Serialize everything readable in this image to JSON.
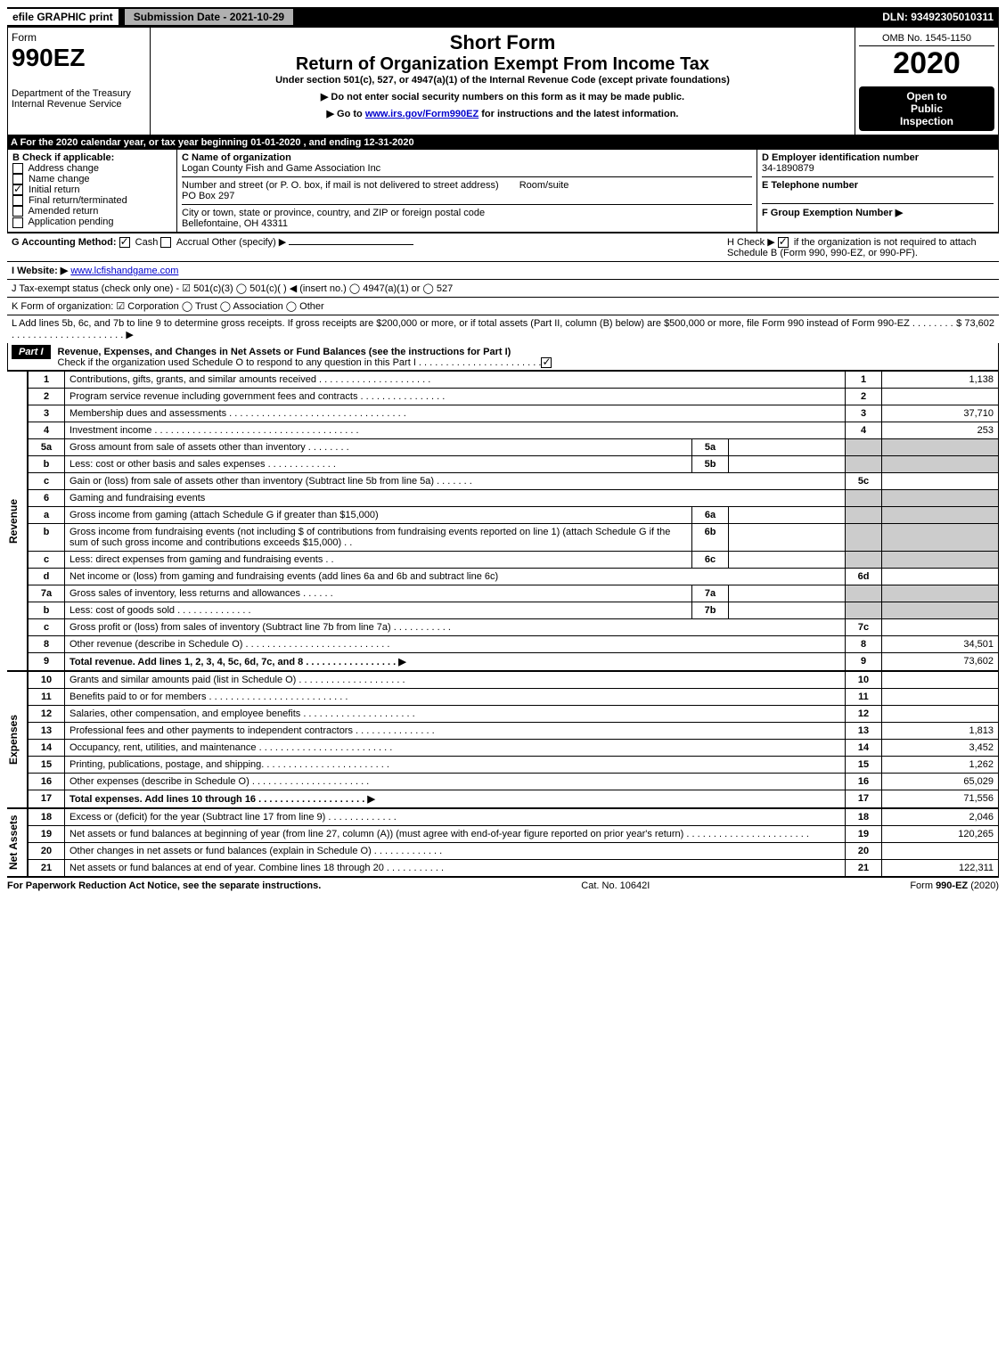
{
  "topbar": {
    "efile": "efile GRAPHIC print",
    "submission_label": "Submission Date - 2021-10-29",
    "dln": "DLN: 93492305010311"
  },
  "header": {
    "form_word": "Form",
    "form_num": "990EZ",
    "dept": "Department of the Treasury",
    "irs": "Internal Revenue Service",
    "short": "Short Form",
    "title": "Return of Organization Exempt From Income Tax",
    "subtitle": "Under section 501(c), 527, or 4947(a)(1) of the Internal Revenue Code (except private foundations)",
    "note1": "▶ Do not enter social security numbers on this form as it may be made public.",
    "note2_pre": "▶ Go to ",
    "note2_link": "www.irs.gov/Form990EZ",
    "note2_post": " for instructions and the latest information.",
    "omb": "OMB No. 1545-1150",
    "year": "2020",
    "open1": "Open to",
    "open2": "Public",
    "open3": "Inspection"
  },
  "lineA": "A For the 2020 calendar year, or tax year beginning 01-01-2020 , and ending 12-31-2020",
  "boxB": {
    "title": "B  Check if applicable:",
    "opts": [
      "Address change",
      "Name change",
      "Initial return",
      "Final return/terminated",
      "Amended return",
      "Application pending"
    ],
    "checked_index": 2
  },
  "boxC": {
    "label_name": "C Name of organization",
    "name": "Logan County Fish and Game Association Inc",
    "label_addr": "Number and street (or P. O. box, if mail is not delivered to street address)",
    "room": "Room/suite",
    "addr": "PO Box 297",
    "label_city": "City or town, state or province, country, and ZIP or foreign postal code",
    "city": "Bellefontaine, OH  43311"
  },
  "boxD": {
    "label": "D Employer identification number",
    "ein": "34-1890879",
    "labelE": "E Telephone number",
    "labelF": "F Group Exemption Number  ▶"
  },
  "lineG": {
    "label": "G Accounting Method:",
    "cash": "Cash",
    "accrual": "Accrual",
    "other": "Other (specify) ▶"
  },
  "lineH": {
    "text1": "H  Check ▶",
    "text2": "if the organization is not required to attach Schedule B (Form 990, 990-EZ, or 990-PF)."
  },
  "lineI": {
    "label": "I Website: ▶",
    "url": "www.lcfishandgame.com"
  },
  "lineJ": "J Tax-exempt status (check only one) - ☑ 501(c)(3)  ◯ 501(c)(  ) ◀ (insert no.)  ◯ 4947(a)(1) or  ◯ 527",
  "lineK": "K Form of organization:  ☑ Corporation  ◯ Trust  ◯ Association  ◯ Other",
  "lineL": {
    "text": "L Add lines 5b, 6c, and 7b to line 9 to determine gross receipts. If gross receipts are $200,000 or more, or if total assets (Part II, column (B) below) are $500,000 or more, file Form 990 instead of Form 990-EZ  . . . . . . . . . . . . . . . . . . . . . . . . . . . . . ▶",
    "amount": "$ 73,602"
  },
  "part1": {
    "label": "Part I",
    "title": "Revenue, Expenses, and Changes in Net Assets or Fund Balances (see the instructions for Part I)",
    "check_line": "Check if the organization used Schedule O to respond to any question in this Part I . . . . . . . . . . . . . . . . . . . . . . ."
  },
  "sections": {
    "revenue": "Revenue",
    "expenses": "Expenses",
    "netassets": "Net Assets"
  },
  "rows": [
    {
      "n": "1",
      "d": "Contributions, gifts, grants, and similar amounts received . . . . . . . . . . . . . . . . . . . . .",
      "rn": "1",
      "rv": "1,138"
    },
    {
      "n": "2",
      "d": "Program service revenue including government fees and contracts . . . . . . . . . . . . . . . .",
      "rn": "2",
      "rv": ""
    },
    {
      "n": "3",
      "d": "Membership dues and assessments . . . . . . . . . . . . . . . . . . . . . . . . . . . . . . . . .",
      "rn": "3",
      "rv": "37,710"
    },
    {
      "n": "4",
      "d": "Investment income . . . . . . . . . . . . . . . . . . . . . . . . . . . . . . . . . . . . . .",
      "rn": "4",
      "rv": "253"
    },
    {
      "n": "5a",
      "d": "Gross amount from sale of assets other than inventory . . . . . . . .",
      "mn": "5a",
      "mv": "",
      "shade": true
    },
    {
      "n": "b",
      "d": "Less: cost or other basis and sales expenses . . . . . . . . . . . . .",
      "mn": "5b",
      "mv": "",
      "shade": true
    },
    {
      "n": "c",
      "d": "Gain or (loss) from sale of assets other than inventory (Subtract line 5b from line 5a) . . . . . . .",
      "rn": "5c",
      "rv": ""
    },
    {
      "n": "6",
      "d": "Gaming and fundraising events",
      "shade": true,
      "noRight": true
    },
    {
      "n": "a",
      "d": "Gross income from gaming (attach Schedule G if greater than $15,000)",
      "mn": "6a",
      "mv": "",
      "shade": true
    },
    {
      "n": "b",
      "d": "Gross income from fundraising events (not including $                       of contributions from fundraising events reported on line 1) (attach Schedule G if the sum of such gross income and contributions exceeds $15,000)    . .",
      "mn": "6b",
      "mv": "",
      "shade": true
    },
    {
      "n": "c",
      "d": "Less: direct expenses from gaming and fundraising events    . .",
      "mn": "6c",
      "mv": "",
      "shade": true
    },
    {
      "n": "d",
      "d": "Net income or (loss) from gaming and fundraising events (add lines 6a and 6b and subtract line 6c)",
      "rn": "6d",
      "rv": ""
    },
    {
      "n": "7a",
      "d": "Gross sales of inventory, less returns and allowances . . . . . .",
      "mn": "7a",
      "mv": "",
      "shade": true
    },
    {
      "n": "b",
      "d": "Less: cost of goods sold           . . . . . . . . . . . . . .",
      "mn": "7b",
      "mv": "",
      "shade": true
    },
    {
      "n": "c",
      "d": "Gross profit or (loss) from sales of inventory (Subtract line 7b from line 7a) . . . . . . . . . . .",
      "rn": "7c",
      "rv": ""
    },
    {
      "n": "8",
      "d": "Other revenue (describe in Schedule O) . . . . . . . . . . . . . . . . . . . . . . . . . . .",
      "rn": "8",
      "rv": "34,501"
    },
    {
      "n": "9",
      "d": "Total revenue. Add lines 1, 2, 3, 4, 5c, 6d, 7c, and 8  . . . . . . . . . . . . . . . . .  ▶",
      "rn": "9",
      "rv": "73,602",
      "bold": true
    }
  ],
  "exp_rows": [
    {
      "n": "10",
      "d": "Grants and similar amounts paid (list in Schedule O) . . . . . . . . . . . . . . . . . . . .",
      "rn": "10",
      "rv": ""
    },
    {
      "n": "11",
      "d": "Benefits paid to or for members      . . . . . . . . . . . . . . . . . . . . . . . . . .",
      "rn": "11",
      "rv": ""
    },
    {
      "n": "12",
      "d": "Salaries, other compensation, and employee benefits . . . . . . . . . . . . . . . . . . . . .",
      "rn": "12",
      "rv": ""
    },
    {
      "n": "13",
      "d": "Professional fees and other payments to independent contractors . . . . . . . . . . . . . . .",
      "rn": "13",
      "rv": "1,813"
    },
    {
      "n": "14",
      "d": "Occupancy, rent, utilities, and maintenance . . . . . . . . . . . . . . . . . . . . . . . . .",
      "rn": "14",
      "rv": "3,452"
    },
    {
      "n": "15",
      "d": "Printing, publications, postage, and shipping. . . . . . . . . . . . . . . . . . . . . . . .",
      "rn": "15",
      "rv": "1,262"
    },
    {
      "n": "16",
      "d": "Other expenses (describe in Schedule O)      . . . . . . . . . . . . . . . . . . . . . .",
      "rn": "16",
      "rv": "65,029"
    },
    {
      "n": "17",
      "d": "Total expenses. Add lines 10 through 16       . . . . . . . . . . . . . . . . . . . .  ▶",
      "rn": "17",
      "rv": "71,556",
      "bold": true
    }
  ],
  "na_rows": [
    {
      "n": "18",
      "d": "Excess or (deficit) for the year (Subtract line 17 from line 9)        . . . . . . . . . . . . .",
      "rn": "18",
      "rv": "2,046"
    },
    {
      "n": "19",
      "d": "Net assets or fund balances at beginning of year (from line 27, column (A)) (must agree with end-of-year figure reported on prior year's return) . . . . . . . . . . . . . . . . . . . . . . .",
      "rn": "19",
      "rv": "120,265"
    },
    {
      "n": "20",
      "d": "Other changes in net assets or fund balances (explain in Schedule O) . . . . . . . . . . . . .",
      "rn": "20",
      "rv": ""
    },
    {
      "n": "21",
      "d": "Net assets or fund balances at end of year. Combine lines 18 through 20 . . . . . . . . . . .",
      "rn": "21",
      "rv": "122,311"
    }
  ],
  "footer": {
    "left": "For Paperwork Reduction Act Notice, see the separate instructions.",
    "mid": "Cat. No. 10642I",
    "right": "Form 990-EZ (2020)"
  }
}
